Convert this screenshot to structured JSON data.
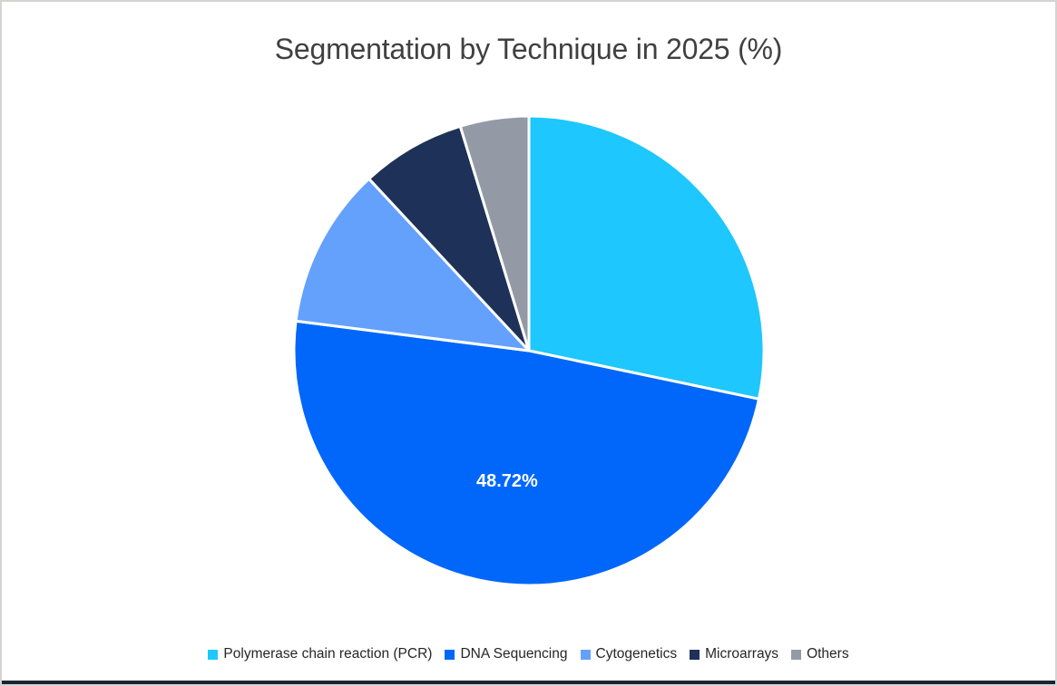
{
  "page": {
    "background_color": "#FFFFFF",
    "border_color": "#D6D4D2",
    "bottom_bar_color": "#1A2433"
  },
  "chart_data": {
    "type": "pie",
    "title": "Segmentation by Technique in 2025 (%)",
    "title_color": "#404040",
    "legend_position": "bottom",
    "start_angle_deg": 0,
    "direction": "clockwise",
    "slice_border_color": "#FFFFFF",
    "data_label_color": "#FFFFFF",
    "slices": [
      {
        "label": "Polymerase chain reaction (PCR)",
        "value": 28.3,
        "color": "#1EC7FD",
        "data_label": ""
      },
      {
        "label": "DNA Sequencing",
        "value": 48.72,
        "color": "#0067FA",
        "data_label": "48.72%"
      },
      {
        "label": "Cytogenetics",
        "value": 11.06,
        "color": "#63A1FC",
        "data_label": ""
      },
      {
        "label": "Microarrays",
        "value": 7.2,
        "color": "#1E3158",
        "data_label": ""
      },
      {
        "label": "Others",
        "value": 4.72,
        "color": "#939AA6",
        "data_label": ""
      }
    ]
  }
}
